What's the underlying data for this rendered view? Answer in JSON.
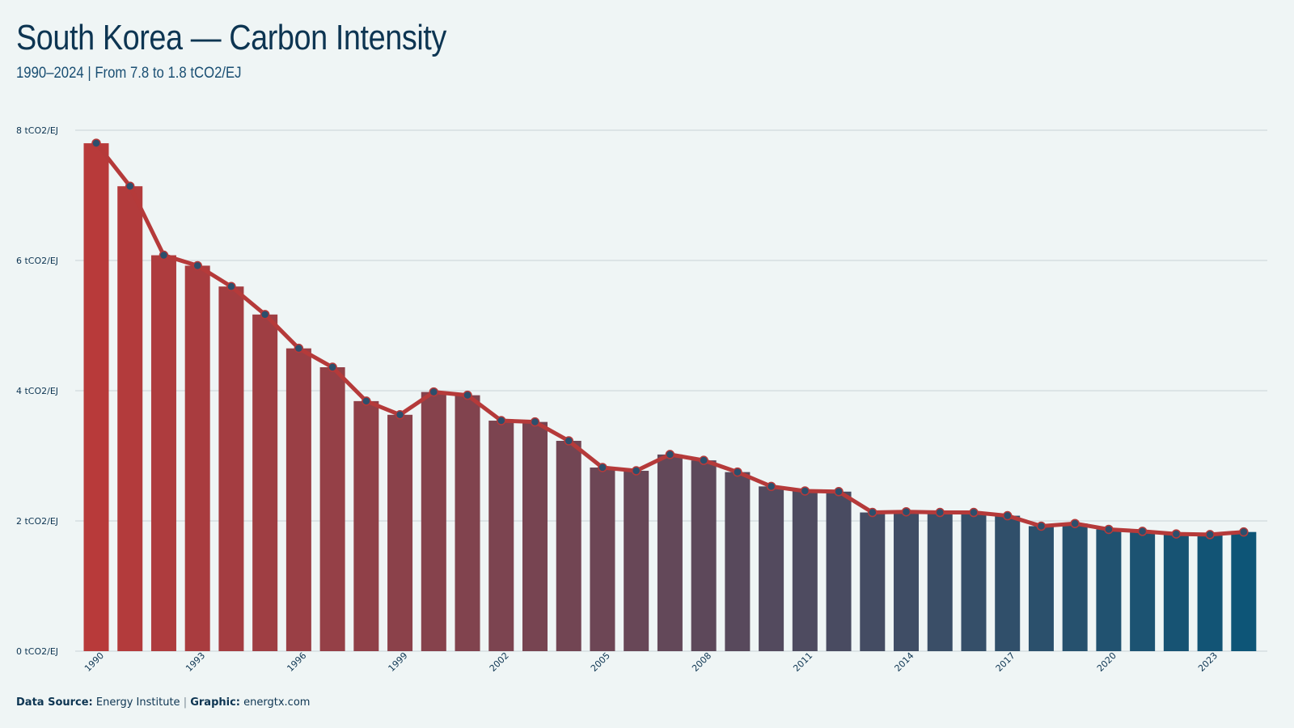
{
  "header": {
    "title": "South Korea  — Carbon Intensity",
    "subtitle": "1990–2024 | From 7.8 to 1.8 tCO2/EJ"
  },
  "footer": {
    "source_label": "Data Source:",
    "source_value": "Energy Institute",
    "separator": "|",
    "graphic_label": "Graphic:",
    "graphic_value": "energtx.com"
  },
  "colors": {
    "background": "#eff5f5",
    "start_bar": "#b83a3a",
    "end_bar": "#0d5577",
    "line": "#b53a3a",
    "marker": "#2c4f6c",
    "grid": "#d5dfe2"
  },
  "chart_data": {
    "type": "bar",
    "overlay": "line",
    "title": "South Korea  — Carbon Intensity",
    "subtitle": "1990–2024 | From 7.8 to 1.8 tCO2/EJ",
    "ylim": [
      0,
      8
    ],
    "y_ticks": [
      0,
      2,
      4,
      6,
      8
    ],
    "y_tick_labels": [
      "0 tCO2/EJ",
      "2 tCO2/EJ",
      "4 tCO2/EJ",
      "6 tCO2/EJ",
      "8 tCO2/EJ"
    ],
    "x_tick_labels": [
      "1990",
      "1993",
      "1996",
      "1999",
      "2002",
      "2005",
      "2008",
      "2011",
      "2014",
      "2017",
      "2020",
      "2023"
    ],
    "grid": true,
    "categories": [
      1990,
      1991,
      1992,
      1993,
      1994,
      1995,
      1996,
      1997,
      1998,
      1999,
      2000,
      2001,
      2002,
      2003,
      2004,
      2005,
      2006,
      2007,
      2008,
      2009,
      2010,
      2011,
      2012,
      2013,
      2014,
      2015,
      2016,
      2017,
      2018,
      2019,
      2020,
      2021,
      2022,
      2023,
      2024
    ],
    "values": [
      7.8,
      7.14,
      6.08,
      5.92,
      5.6,
      5.17,
      4.65,
      4.36,
      3.84,
      3.63,
      3.98,
      3.93,
      3.54,
      3.52,
      3.23,
      2.82,
      2.77,
      3.02,
      2.93,
      2.75,
      2.53,
      2.46,
      2.45,
      2.13,
      2.14,
      2.13,
      2.13,
      2.08,
      1.92,
      1.96,
      1.87,
      1.84,
      1.8,
      1.79,
      1.83
    ]
  }
}
